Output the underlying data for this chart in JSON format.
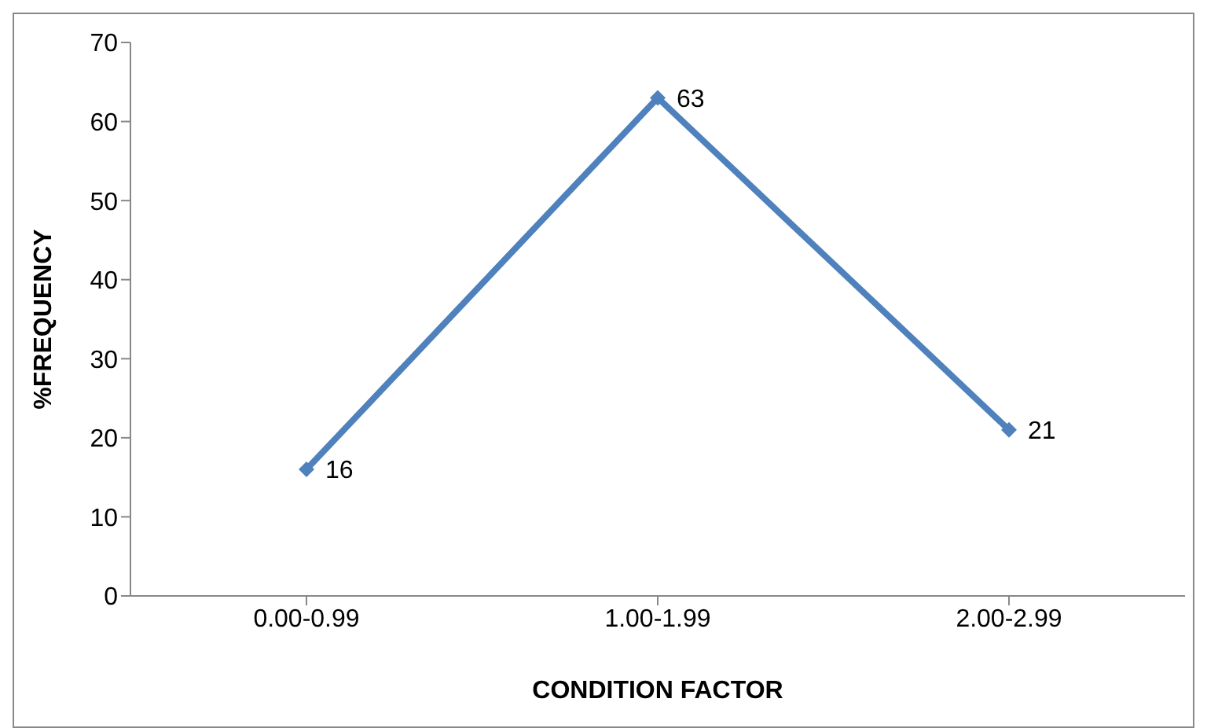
{
  "chart_data": {
    "type": "line",
    "xlabel": "CONDITION FACTOR",
    "ylabel": "%FREQUENCY",
    "categories": [
      "0.00-0.99",
      "1.00-1.99",
      "2.00-2.99"
    ],
    "series": [
      {
        "color": "#4f81bd",
        "values": [
          16,
          63,
          21
        ]
      }
    ],
    "ylim": [
      0,
      70
    ],
    "yticks": [
      0,
      10,
      20,
      30,
      40,
      50,
      60,
      70
    ],
    "grid": false,
    "legend": false,
    "marker": "diamond",
    "line_style": "solid",
    "data_labels": true
  }
}
